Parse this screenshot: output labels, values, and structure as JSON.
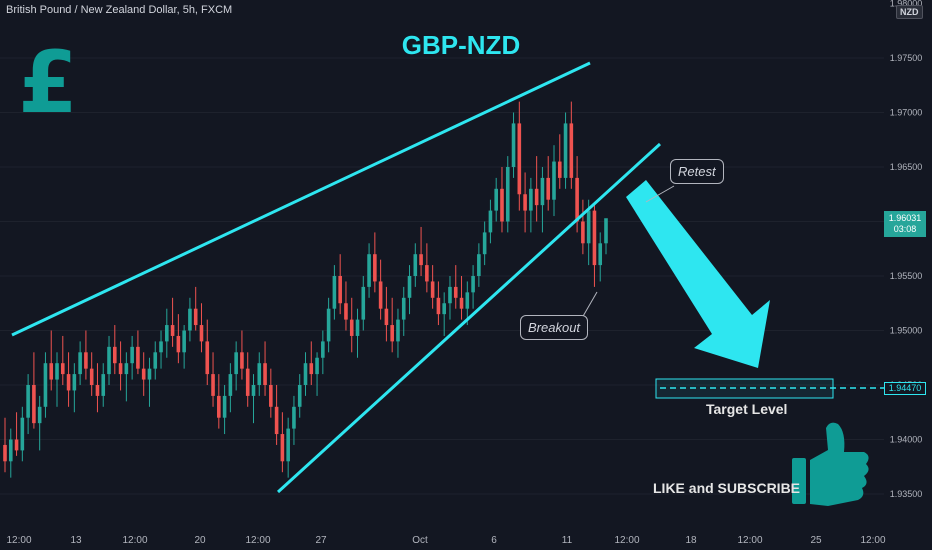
{
  "header": {
    "symbol_text": "British Pound / New Zealand Dollar, 5h, FXCM",
    "currency_badge": "NZD",
    "title": "GBP-NZD"
  },
  "annotations": {
    "retest": "Retest",
    "breakout": "Breakout",
    "target_level": "Target Level",
    "like_subscribe": "LIKE and SUBSCRIBE",
    "pound_symbol": "£"
  },
  "price_scale": {
    "labels": [
      "1.98000",
      "1.97500",
      "1.97000",
      "1.96500",
      "1.96000",
      "1.95500",
      "1.95000",
      "1.94500",
      "1.94000",
      "1.93500"
    ],
    "last_price": "1.96031",
    "countdown": "03:08",
    "target_price": "1.94470"
  },
  "time_scale": {
    "labels": [
      "12:00",
      "13",
      "12:00",
      "20",
      "12:00",
      "27",
      "Oct",
      "6",
      "11",
      "12:00",
      "18",
      "12:00",
      "25",
      "12:00"
    ]
  },
  "colors": {
    "up": "#26a69a",
    "down": "#ef5350",
    "accent": "#2ee6f0",
    "icon": "#0f9c95",
    "background": "#131722"
  },
  "icons": [
    "pound-icon",
    "thumbs-up-icon",
    "arrow-down-icon"
  ],
  "chart_data": {
    "type": "candlestick",
    "title": "GBP-NZD",
    "ylim": [
      1.933,
      1.98
    ],
    "y_ticks": [
      1.975,
      1.97,
      1.965,
      1.96,
      1.955,
      1.95,
      1.945,
      1.94,
      1.935
    ],
    "last": 1.96031,
    "target": 1.9447,
    "x_labels": [
      "12:00",
      "13",
      "12:00",
      "20",
      "12:00",
      "27",
      "Oct",
      "6",
      "11",
      "12:00",
      "18",
      "12:00",
      "25",
      "12:00"
    ],
    "candles": [
      [
        1.9395,
        1.942,
        1.937,
        1.938
      ],
      [
        1.938,
        1.941,
        1.9365,
        1.94
      ],
      [
        1.94,
        1.9425,
        1.9385,
        1.939
      ],
      [
        1.939,
        1.943,
        1.938,
        1.942
      ],
      [
        1.942,
        1.946,
        1.9405,
        1.945
      ],
      [
        1.945,
        1.948,
        1.941,
        1.9415
      ],
      [
        1.9415,
        1.944,
        1.939,
        1.943
      ],
      [
        1.943,
        1.948,
        1.942,
        1.947
      ],
      [
        1.947,
        1.95,
        1.9445,
        1.9455
      ],
      [
        1.9455,
        1.948,
        1.943,
        1.947
      ],
      [
        1.947,
        1.9495,
        1.945,
        1.946
      ],
      [
        1.946,
        1.948,
        1.943,
        1.9445
      ],
      [
        1.9445,
        1.947,
        1.9425,
        1.946
      ],
      [
        1.946,
        1.949,
        1.945,
        1.948
      ],
      [
        1.948,
        1.95,
        1.9455,
        1.9465
      ],
      [
        1.9465,
        1.948,
        1.944,
        1.945
      ],
      [
        1.945,
        1.947,
        1.9425,
        1.944
      ],
      [
        1.944,
        1.947,
        1.943,
        1.946
      ],
      [
        1.946,
        1.9495,
        1.945,
        1.9485
      ],
      [
        1.9485,
        1.9505,
        1.946,
        1.947
      ],
      [
        1.947,
        1.949,
        1.9445,
        1.946
      ],
      [
        1.946,
        1.948,
        1.9435,
        1.947
      ],
      [
        1.947,
        1.9495,
        1.9455,
        1.9485
      ],
      [
        1.9485,
        1.95,
        1.946,
        1.9465
      ],
      [
        1.9465,
        1.948,
        1.944,
        1.9455
      ],
      [
        1.9455,
        1.9475,
        1.943,
        1.9465
      ],
      [
        1.9465,
        1.949,
        1.9455,
        1.948
      ],
      [
        1.948,
        1.95,
        1.9465,
        1.949
      ],
      [
        1.949,
        1.952,
        1.9475,
        1.9505
      ],
      [
        1.9505,
        1.953,
        1.9485,
        1.9495
      ],
      [
        1.9495,
        1.9515,
        1.947,
        1.948
      ],
      [
        1.948,
        1.9505,
        1.9465,
        1.95
      ],
      [
        1.95,
        1.953,
        1.949,
        1.952
      ],
      [
        1.952,
        1.954,
        1.95,
        1.9505
      ],
      [
        1.9505,
        1.9525,
        1.948,
        1.949
      ],
      [
        1.949,
        1.951,
        1.945,
        1.946
      ],
      [
        1.946,
        1.948,
        1.943,
        1.944
      ],
      [
        1.944,
        1.946,
        1.941,
        1.942
      ],
      [
        1.942,
        1.945,
        1.9405,
        1.944
      ],
      [
        1.944,
        1.947,
        1.9425,
        1.946
      ],
      [
        1.946,
        1.949,
        1.9445,
        1.948
      ],
      [
        1.948,
        1.95,
        1.9455,
        1.9465
      ],
      [
        1.9465,
        1.948,
        1.943,
        1.944
      ],
      [
        1.944,
        1.946,
        1.9415,
        1.945
      ],
      [
        1.945,
        1.948,
        1.944,
        1.947
      ],
      [
        1.947,
        1.949,
        1.944,
        1.945
      ],
      [
        1.945,
        1.9465,
        1.942,
        1.943
      ],
      [
        1.943,
        1.945,
        1.9395,
        1.9405
      ],
      [
        1.9405,
        1.9425,
        1.937,
        1.938
      ],
      [
        1.938,
        1.942,
        1.9365,
        1.941
      ],
      [
        1.941,
        1.944,
        1.9395,
        1.943
      ],
      [
        1.943,
        1.946,
        1.942,
        1.945
      ],
      [
        1.945,
        1.948,
        1.944,
        1.947
      ],
      [
        1.947,
        1.949,
        1.945,
        1.946
      ],
      [
        1.946,
        1.948,
        1.944,
        1.9475
      ],
      [
        1.9475,
        1.95,
        1.946,
        1.949
      ],
      [
        1.949,
        1.953,
        1.948,
        1.952
      ],
      [
        1.952,
        1.956,
        1.951,
        1.955
      ],
      [
        1.955,
        1.957,
        1.9515,
        1.9525
      ],
      [
        1.9525,
        1.9545,
        1.95,
        1.951
      ],
      [
        1.951,
        1.953,
        1.948,
        1.9495
      ],
      [
        1.9495,
        1.952,
        1.9475,
        1.951
      ],
      [
        1.951,
        1.955,
        1.95,
        1.954
      ],
      [
        1.954,
        1.958,
        1.953,
        1.957
      ],
      [
        1.957,
        1.959,
        1.9535,
        1.9545
      ],
      [
        1.9545,
        1.9565,
        1.951,
        1.952
      ],
      [
        1.952,
        1.954,
        1.949,
        1.9505
      ],
      [
        1.9505,
        1.953,
        1.948,
        1.949
      ],
      [
        1.949,
        1.952,
        1.9475,
        1.951
      ],
      [
        1.951,
        1.954,
        1.9495,
        1.953
      ],
      [
        1.953,
        1.956,
        1.9515,
        1.955
      ],
      [
        1.955,
        1.958,
        1.954,
        1.957
      ],
      [
        1.957,
        1.9595,
        1.955,
        1.956
      ],
      [
        1.956,
        1.958,
        1.9535,
        1.9545
      ],
      [
        1.9545,
        1.956,
        1.952,
        1.953
      ],
      [
        1.953,
        1.9545,
        1.9505,
        1.9515
      ],
      [
        1.9515,
        1.9535,
        1.9495,
        1.9525
      ],
      [
        1.9525,
        1.955,
        1.951,
        1.954
      ],
      [
        1.954,
        1.956,
        1.952,
        1.953
      ],
      [
        1.953,
        1.955,
        1.951,
        1.952
      ],
      [
        1.952,
        1.9545,
        1.9505,
        1.9535
      ],
      [
        1.9535,
        1.956,
        1.952,
        1.955
      ],
      [
        1.955,
        1.958,
        1.954,
        1.957
      ],
      [
        1.957,
        1.96,
        1.956,
        1.959
      ],
      [
        1.959,
        1.962,
        1.958,
        1.961
      ],
      [
        1.961,
        1.964,
        1.96,
        1.963
      ],
      [
        1.963,
        1.965,
        1.959,
        1.96
      ],
      [
        1.96,
        1.966,
        1.959,
        1.965
      ],
      [
        1.965,
        1.97,
        1.964,
        1.969
      ],
      [
        1.969,
        1.971,
        1.961,
        1.9625
      ],
      [
        1.9625,
        1.9645,
        1.959,
        1.961
      ],
      [
        1.961,
        1.964,
        1.959,
        1.963
      ],
      [
        1.963,
        1.966,
        1.96,
        1.9615
      ],
      [
        1.9615,
        1.965,
        1.959,
        1.964
      ],
      [
        1.964,
        1.966,
        1.961,
        1.962
      ],
      [
        1.962,
        1.967,
        1.9605,
        1.9655
      ],
      [
        1.9655,
        1.968,
        1.963,
        1.964
      ],
      [
        1.964,
        1.97,
        1.963,
        1.969
      ],
      [
        1.969,
        1.971,
        1.963,
        1.964
      ],
      [
        1.964,
        1.966,
        1.959,
        1.96
      ],
      [
        1.96,
        1.962,
        1.957,
        1.958
      ],
      [
        1.958,
        1.962,
        1.956,
        1.961
      ],
      [
        1.961,
        1.9615,
        1.954,
        1.956
      ],
      [
        1.956,
        1.959,
        1.9545,
        1.958
      ],
      [
        1.958,
        1.96,
        1.957,
        1.9603
      ]
    ]
  }
}
